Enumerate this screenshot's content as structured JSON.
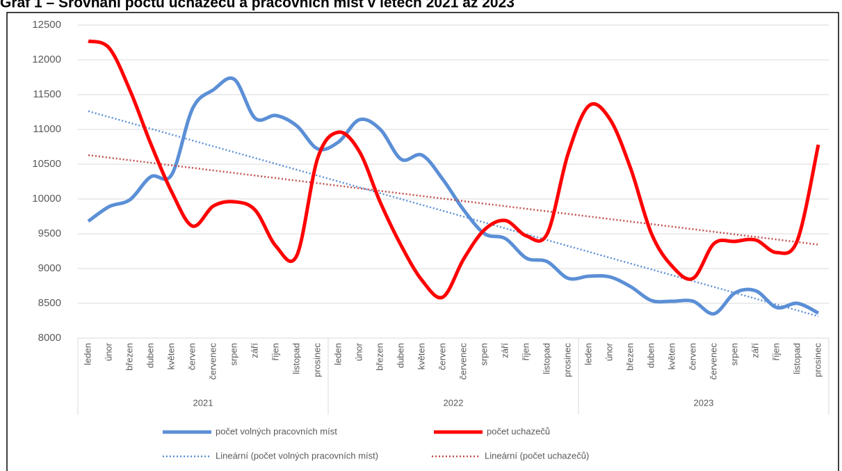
{
  "chart_data": {
    "type": "line",
    "title": "Graf 1 – Srovnání počtu uchazečů a pracovních míst v letech 2021 až 2023",
    "categories": [
      "leden",
      "únor",
      "březen",
      "duben",
      "květen",
      "červen",
      "červenec",
      "srpen",
      "září",
      "říjen",
      "listopad",
      "prosinec",
      "leden",
      "únor",
      "březen",
      "duben",
      "květen",
      "červen",
      "červenec",
      "srpen",
      "září",
      "říjen",
      "listopad",
      "prosinec",
      "leden",
      "únor",
      "březen",
      "duben",
      "květen",
      "červen",
      "červenec",
      "srpen",
      "září",
      "říjen",
      "listopad",
      "prosinec"
    ],
    "groups": [
      "2021",
      "2022",
      "2023"
    ],
    "series": [
      {
        "name": "počet volných pracovních míst",
        "color": "#5b8fd6",
        "values": [
          9680,
          9890,
          9990,
          10320,
          10350,
          11300,
          11570,
          11720,
          11160,
          11200,
          11050,
          10720,
          10820,
          11140,
          11000,
          10570,
          10630,
          10280,
          9840,
          9500,
          9430,
          9150,
          9100,
          8860,
          8890,
          8880,
          8740,
          8540,
          8530,
          8530,
          8350,
          8650,
          8680,
          8440,
          8500,
          8360
        ],
        "trendline": {
          "name": "Lineární (počet volných pracovních míst)",
          "color": "#5b8fd6"
        }
      },
      {
        "name": "počet uchazečů",
        "color": "#ff0000",
        "values": [
          12270,
          12170,
          11560,
          10790,
          10100,
          9610,
          9900,
          9960,
          9840,
          9320,
          9190,
          10590,
          10960,
          10680,
          9950,
          9330,
          8830,
          8590,
          9140,
          9560,
          9690,
          9470,
          9500,
          10650,
          11340,
          11150,
          10440,
          9500,
          9030,
          8860,
          9360,
          9390,
          9410,
          9230,
          9410,
          10780
        ],
        "trendline": {
          "name": "Lineární (počet uchazečů)",
          "color": "#c0504d"
        }
      }
    ],
    "ylim": [
      8000,
      12500
    ],
    "yticks": [
      8000,
      8500,
      9000,
      9500,
      10000,
      10500,
      11000,
      11500,
      12000,
      12500
    ],
    "grid": true,
    "legend": "bottom"
  }
}
